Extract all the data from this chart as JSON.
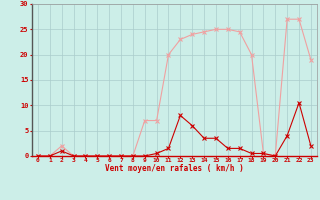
{
  "x": [
    0,
    1,
    2,
    3,
    4,
    5,
    6,
    7,
    8,
    9,
    10,
    11,
    12,
    13,
    14,
    15,
    16,
    17,
    18,
    19,
    20,
    21,
    22,
    23
  ],
  "rafales": [
    0,
    0,
    2,
    0,
    0,
    0,
    0,
    0,
    0,
    7,
    7,
    20,
    23,
    24,
    24.5,
    25,
    25,
    24.5,
    20,
    0.5,
    0,
    27,
    27,
    19
  ],
  "moyen": [
    0,
    0,
    1,
    0,
    0,
    0,
    0,
    0,
    0,
    0,
    0.5,
    1.5,
    8,
    6,
    3.5,
    3.5,
    1.5,
    1.5,
    0.5,
    0.5,
    0,
    4,
    10.5,
    2
  ],
  "xlabel": "Vent moyen/en rafales ( km/h )",
  "ylim": [
    0,
    30
  ],
  "xlim": [
    -0.5,
    23.5
  ],
  "yticks": [
    0,
    5,
    10,
    15,
    20,
    25,
    30
  ],
  "xticks": [
    0,
    1,
    2,
    3,
    4,
    5,
    6,
    7,
    8,
    9,
    10,
    11,
    12,
    13,
    14,
    15,
    16,
    17,
    18,
    19,
    20,
    21,
    22,
    23
  ],
  "bg_color": "#cceee8",
  "grid_color": "#aacccc",
  "rafales_color": "#f0a0a0",
  "moyen_color": "#cc0000",
  "label_color": "#cc0000",
  "tick_color": "#cc0000"
}
